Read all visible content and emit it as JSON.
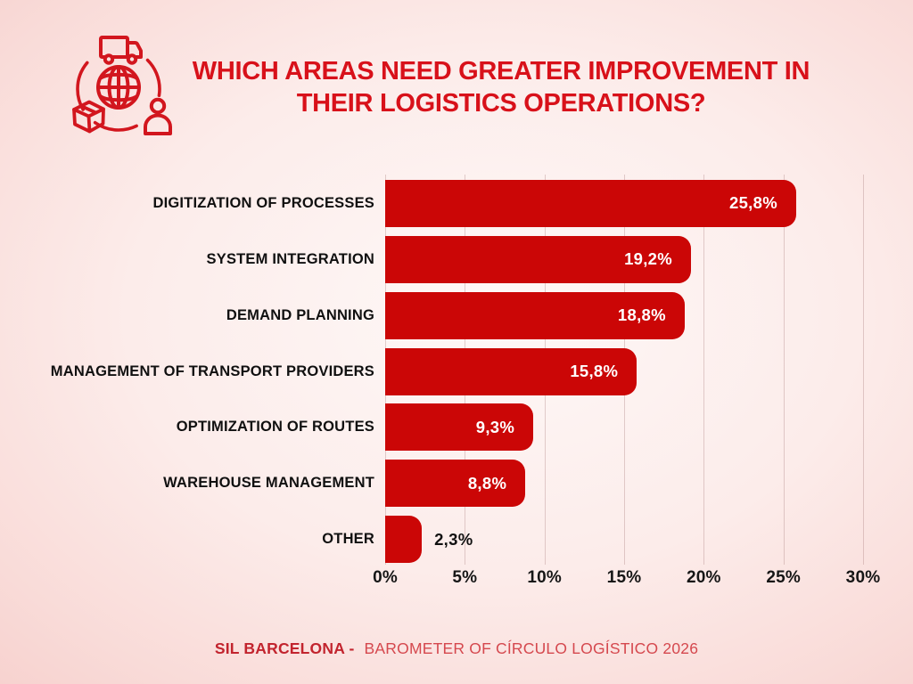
{
  "header": {
    "title_line1": "WHICH AREAS NEED GREATER IMPROVEMENT IN",
    "title_line2": "THEIR LOGISTICS OPERATIONS?"
  },
  "logo": {
    "icons": [
      "truck-icon",
      "globe-icon",
      "box-icon",
      "person-icon",
      "cycle-arcs-icon"
    ]
  },
  "chart_data": {
    "type": "bar",
    "orientation": "horizontal",
    "title": "WHICH AREAS NEED GREATER IMPROVEMENT IN THEIR LOGISTICS OPERATIONS?",
    "categories": [
      "DIGITIZATION OF PROCESSES",
      "SYSTEM INTEGRATION",
      "DEMAND PLANNING",
      "MANAGEMENT OF TRANSPORT PROVIDERS",
      "OPTIMIZATION OF ROUTES",
      "WAREHOUSE MANAGEMENT",
      "OTHER"
    ],
    "values": [
      25.8,
      19.2,
      18.8,
      15.8,
      9.3,
      8.8,
      2.3
    ],
    "value_labels": [
      "25,8%",
      "19,2%",
      "18,8%",
      "15,8%",
      "9,3%",
      "8,8%",
      "2,3%"
    ],
    "xlim": [
      0,
      30
    ],
    "x_ticks": [
      "0%",
      "5%",
      "10%",
      "15%",
      "20%",
      "25%",
      "30%"
    ],
    "grid": true,
    "legend": false,
    "bar_color": "#cb0606",
    "inside_label_color": "#ffffff",
    "outside_label_color": "#111111",
    "outside_label_min": 5
  },
  "footer": {
    "brand": "SIL BARCELONA -",
    "rest": "BAROMETER OF CÍRCULO  LOGÍSTICO 2026"
  },
  "colors": {
    "title_red": "#d8111a",
    "bar_red": "#cb0606",
    "logo_red": "#d2161e",
    "footer_brand_red": "#c2242e",
    "footer_text_red": "#d5484e",
    "gridline": "rgba(168,124,124,0.34)",
    "background_center": "#fef8f7",
    "background_edge": "#f4c6c3"
  }
}
